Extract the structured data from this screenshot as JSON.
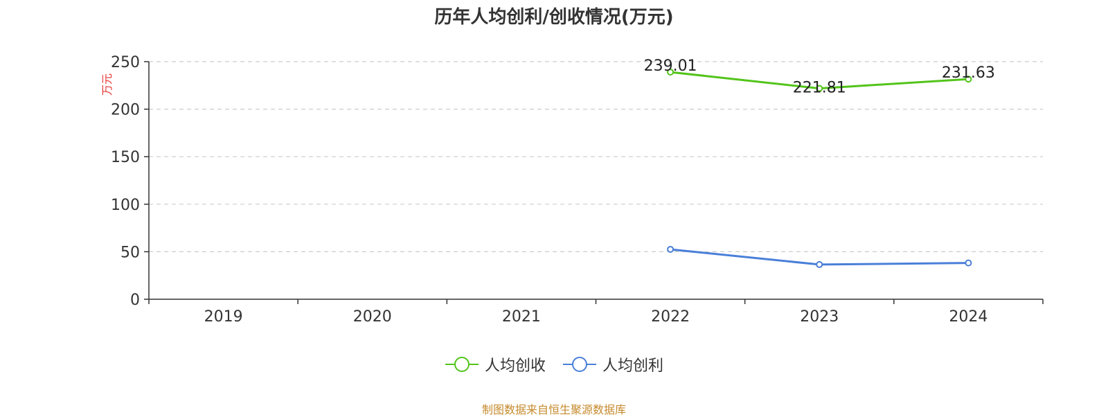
{
  "chart_data": {
    "type": "line",
    "title": "历年人均创利/创收情况(万元)",
    "ylabel": "万元",
    "xlabel": "",
    "categories": [
      "2019",
      "2020",
      "2021",
      "2022",
      "2023",
      "2024"
    ],
    "ylim": [
      0,
      250
    ],
    "yticks": [
      0,
      50,
      100,
      150,
      200,
      250
    ],
    "grid": true,
    "legend_position": "bottom",
    "series": [
      {
        "name": "人均创收",
        "color": "#52c41a",
        "values": [
          null,
          null,
          null,
          239.01,
          221.81,
          231.63
        ],
        "labels": [
          "",
          "",
          "",
          "239.01",
          "221.81",
          "231.63"
        ]
      },
      {
        "name": "人均创利",
        "color": "#4a7fd8",
        "values": [
          null,
          null,
          null,
          52.5,
          36.5,
          38.2
        ],
        "labels": [
          "",
          "",
          "",
          "",
          "",
          ""
        ]
      }
    ]
  },
  "source_note": "制图数据来自恒生聚源数据库"
}
